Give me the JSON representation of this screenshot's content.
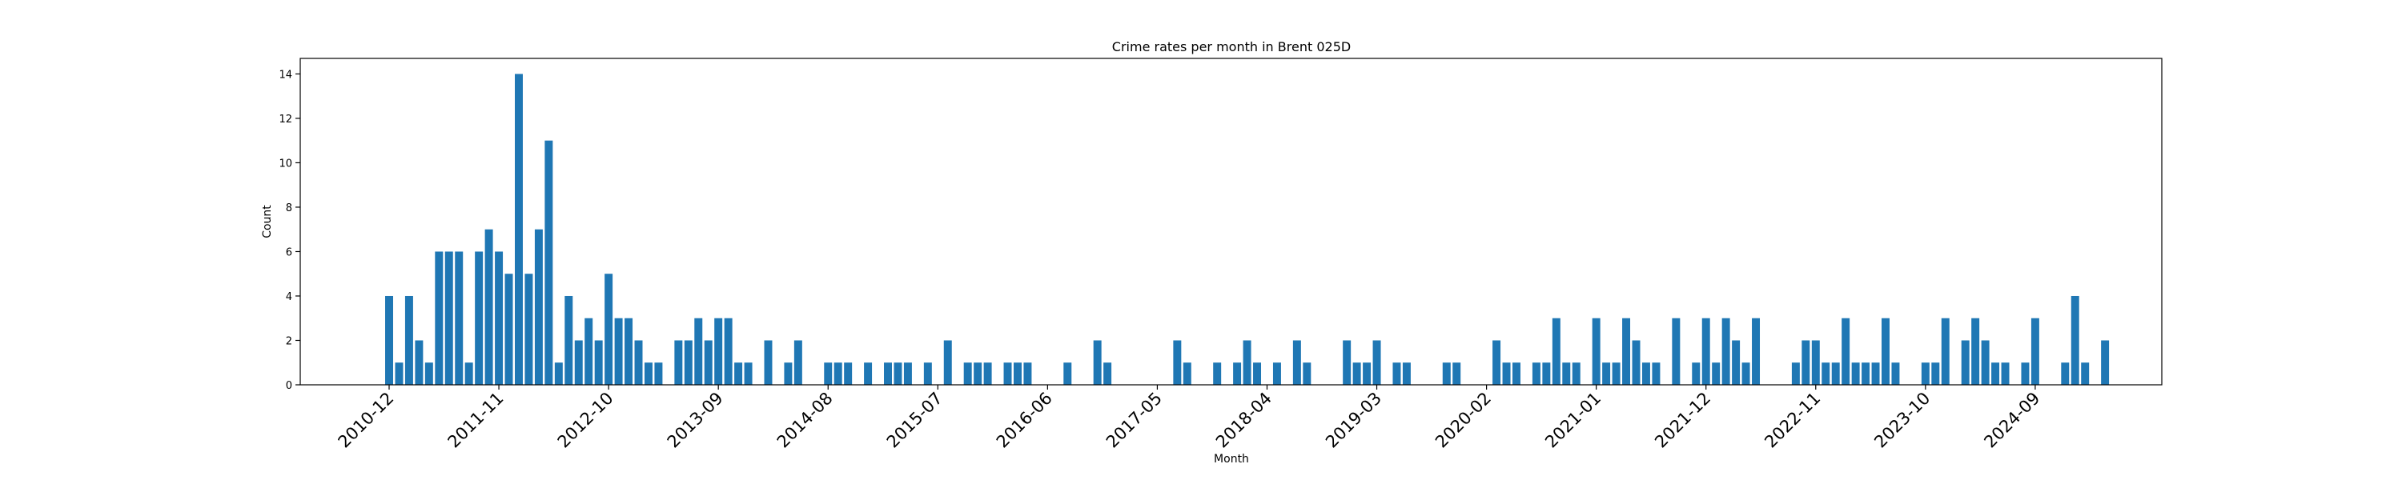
{
  "chart_data": {
    "type": "bar",
    "title": "Crime rates per month in Brent 025D",
    "xlabel": "Month",
    "ylabel": "Count",
    "ylim": [
      0,
      14.7
    ],
    "yticks": [
      0,
      2,
      4,
      6,
      8,
      10,
      12,
      14
    ],
    "xtick_labels": [
      "2010-12",
      "2011-11",
      "2012-10",
      "2013-09",
      "2014-08",
      "2015-07",
      "2016-06",
      "2017-05",
      "2018-04",
      "2019-03",
      "2020-02",
      "2021-01",
      "2021-12",
      "2022-11",
      "2023-10",
      "2024-09"
    ],
    "start_month": "2010-12",
    "legend": "none",
    "grid": false,
    "color": "#1f77b4",
    "series": [
      {
        "months": [
          "2010-12",
          "2011-01",
          "2011-02",
          "2011-03",
          "2011-04",
          "2011-05",
          "2011-06",
          "2011-07",
          "2011-08",
          "2011-09",
          "2011-10",
          "2011-11",
          "2011-12",
          "2012-01",
          "2012-02",
          "2012-03",
          "2012-04",
          "2012-05",
          "2012-06",
          "2012-07",
          "2012-08",
          "2012-09",
          "2012-10",
          "2012-11",
          "2012-12",
          "2013-01",
          "2013-02",
          "2013-03",
          "2013-05",
          "2013-06",
          "2013-07",
          "2013-08",
          "2013-09",
          "2013-10",
          "2013-11",
          "2013-12",
          "2014-02",
          "2014-04",
          "2014-05",
          "2014-08",
          "2014-09",
          "2014-10",
          "2014-12",
          "2015-02",
          "2015-03",
          "2015-04",
          "2015-06",
          "2015-08",
          "2015-10",
          "2015-11",
          "2015-12",
          "2016-02",
          "2016-03",
          "2016-04",
          "2016-08",
          "2016-11",
          "2016-12",
          "2017-07",
          "2017-08",
          "2017-11",
          "2018-01",
          "2018-02",
          "2018-03",
          "2018-05",
          "2018-07",
          "2018-08",
          "2018-12",
          "2019-01",
          "2019-02",
          "2019-03",
          "2019-05",
          "2019-06",
          "2019-10",
          "2019-11",
          "2020-03",
          "2020-04",
          "2020-05",
          "2020-07",
          "2020-08",
          "2020-09",
          "2020-10",
          "2020-11",
          "2021-01",
          "2021-02",
          "2021-03",
          "2021-04",
          "2021-05",
          "2021-06",
          "2021-07",
          "2021-09",
          "2021-11",
          "2021-12",
          "2022-01",
          "2022-02",
          "2022-03",
          "2022-04",
          "2022-05",
          "2022-09",
          "2022-10",
          "2022-11",
          "2022-12",
          "2023-01",
          "2023-02",
          "2023-03",
          "2023-04",
          "2023-05",
          "2023-06",
          "2023-07",
          "2023-10",
          "2023-11",
          "2023-12",
          "2024-02",
          "2024-03",
          "2024-04",
          "2024-05",
          "2024-06",
          "2024-08",
          "2024-09",
          "2024-12",
          "2025-01",
          "2025-02",
          "2025-04"
        ],
        "values": [
          4,
          1,
          4,
          2,
          1,
          6,
          6,
          6,
          1,
          6,
          7,
          6,
          5,
          14,
          5,
          7,
          11,
          1,
          4,
          2,
          3,
          2,
          5,
          3,
          3,
          2,
          1,
          1,
          2,
          2,
          3,
          2,
          3,
          3,
          1,
          1,
          2,
          1,
          2,
          1,
          1,
          1,
          1,
          1,
          1,
          1,
          1,
          2,
          1,
          1,
          1,
          1,
          1,
          1,
          1,
          2,
          1,
          2,
          1,
          1,
          1,
          2,
          1,
          1,
          2,
          1,
          2,
          1,
          1,
          2,
          1,
          1,
          1,
          1,
          2,
          1,
          1,
          1,
          1,
          3,
          1,
          1,
          3,
          1,
          1,
          3,
          2,
          1,
          1,
          3,
          1,
          3,
          1,
          3,
          2,
          1,
          3,
          1,
          2,
          2,
          1,
          1,
          3,
          1,
          1,
          1,
          3,
          1,
          1,
          1,
          3,
          2,
          3,
          2,
          1,
          1,
          1,
          3,
          1,
          4,
          1,
          2
        ]
      }
    ]
  }
}
